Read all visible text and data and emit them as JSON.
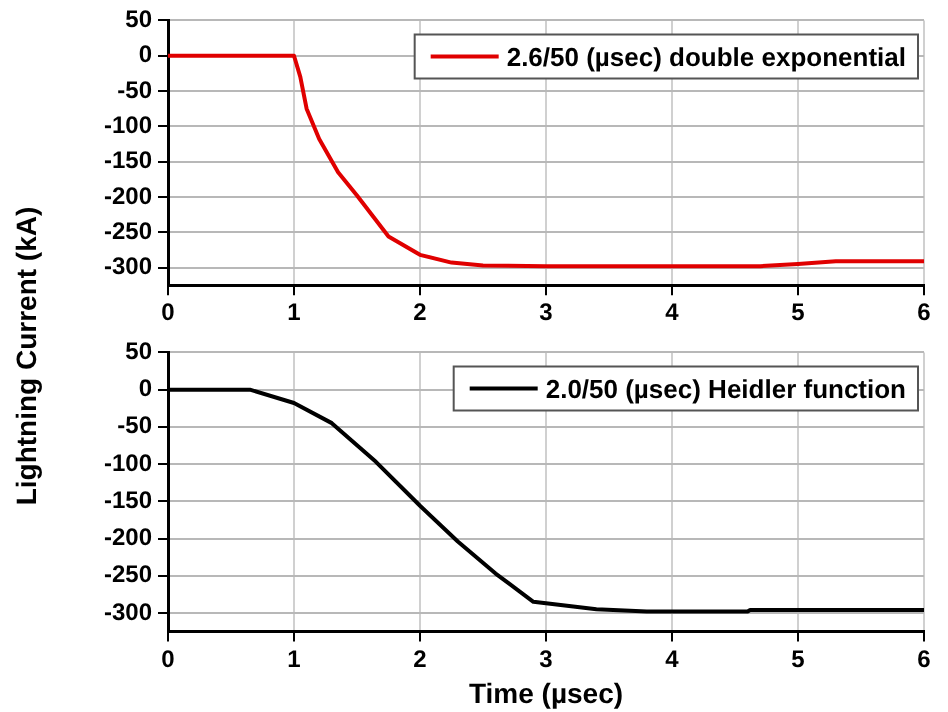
{
  "chart_data": [
    {
      "type": "line",
      "ylabel": "Lightning Current (kA)",
      "xlim": [
        0,
        6
      ],
      "xticks": [
        0,
        1,
        2,
        3,
        4,
        5,
        6
      ],
      "ylim": [
        -325,
        50
      ],
      "yticks": [
        -300,
        -250,
        -200,
        -150,
        -100,
        -50,
        0,
        50
      ],
      "grid": true,
      "legend": "top right",
      "series": [
        {
          "name": "2.6/50 (µsec) double exponential",
          "color": "#e00000",
          "x": [
            0,
            1,
            1.05,
            1.1,
            1.2,
            1.35,
            1.5,
            1.75,
            2,
            2.25,
            2.5,
            3,
            4,
            4.7,
            5,
            5.3,
            6
          ],
          "values": [
            0,
            0,
            -30,
            -75,
            -118,
            -165,
            -198,
            -256,
            -282,
            -293,
            -297,
            -298,
            -298,
            -298,
            -295,
            -291,
            -291
          ]
        }
      ]
    },
    {
      "type": "line",
      "xlabel": "Time (µsec)",
      "xlim": [
        0,
        6
      ],
      "xticks": [
        0,
        1,
        2,
        3,
        4,
        5,
        6
      ],
      "ylim": [
        -325,
        50
      ],
      "yticks": [
        -300,
        -250,
        -200,
        -150,
        -100,
        -50,
        0,
        50
      ],
      "grid": true,
      "legend": "top right",
      "series": [
        {
          "name": "2.0/50 (µsec) Heidler function",
          "color": "#000000",
          "x": [
            0,
            0.65,
            1,
            1.3,
            1.65,
            2,
            2.3,
            2.6,
            2.9,
            3.4,
            3.8,
            4.6,
            4.62,
            6
          ],
          "values": [
            0,
            0,
            -18,
            -45,
            -97,
            -156,
            -204,
            -247,
            -285,
            -295,
            -298,
            -298,
            -296,
            -296
          ]
        }
      ]
    }
  ]
}
